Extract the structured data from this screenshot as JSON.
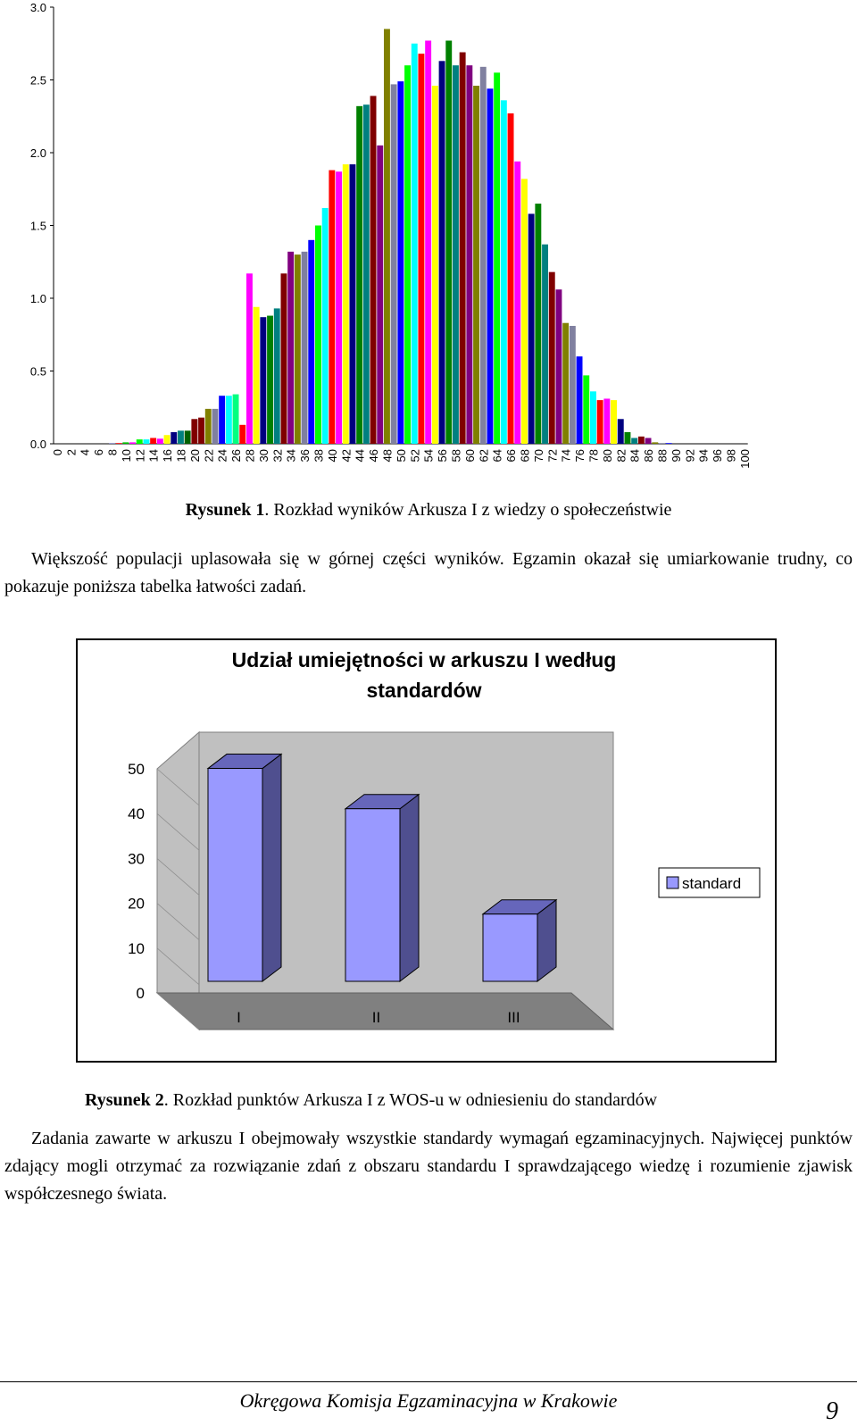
{
  "chart1": {
    "chart_data": {
      "type": "bar",
      "categories": [
        "0",
        "1",
        "2",
        "3",
        "4",
        "5",
        "6",
        "7",
        "8",
        "9",
        "10",
        "11",
        "12",
        "13",
        "14",
        "15",
        "16",
        "17",
        "18",
        "19",
        "20",
        "21",
        "22",
        "23",
        "24",
        "25",
        "26",
        "27",
        "28",
        "29",
        "30",
        "31",
        "32",
        "33",
        "34",
        "35",
        "36",
        "37",
        "38",
        "39",
        "40",
        "41",
        "42",
        "43",
        "44",
        "45",
        "46",
        "47",
        "48",
        "49",
        "50",
        "51",
        "52",
        "53",
        "54",
        "55",
        "56",
        "57",
        "58",
        "59",
        "60",
        "61",
        "62",
        "63",
        "64",
        "65",
        "66",
        "67",
        "68",
        "69",
        "70",
        "71",
        "72",
        "73",
        "74",
        "75",
        "76",
        "77",
        "78",
        "79",
        "80",
        "81",
        "82",
        "83",
        "84",
        "85",
        "86",
        "87",
        "88",
        "89",
        "90",
        "91",
        "92",
        "93",
        "94",
        "95",
        "96",
        "97",
        "98",
        "99",
        "100"
      ],
      "tick_labels": [
        "0",
        "2",
        "4",
        "6",
        "8",
        "10",
        "12",
        "14",
        "16",
        "18",
        "20",
        "22",
        "24",
        "26",
        "28",
        "30",
        "32",
        "34",
        "36",
        "38",
        "40",
        "42",
        "44",
        "46",
        "48",
        "50",
        "52",
        "54",
        "56",
        "58",
        "60",
        "62",
        "64",
        "66",
        "68",
        "70",
        "72",
        "74",
        "76",
        "78",
        "80",
        "82",
        "84",
        "86",
        "88",
        "90",
        "92",
        "94",
        "96",
        "98",
        "100"
      ],
      "values": [
        0,
        0,
        0,
        0,
        0,
        0,
        0,
        0,
        0.005,
        0.005,
        0.01,
        0.01,
        0.03,
        0.03,
        0.04,
        0.035,
        0.06,
        0.08,
        0.09,
        0.09,
        0.17,
        0.18,
        0.24,
        0.24,
        0.33,
        0.33,
        0.34,
        0.13,
        1.17,
        0.94,
        0.87,
        0.88,
        0.93,
        1.17,
        1.32,
        1.3,
        1.32,
        1.4,
        1.5,
        1.62,
        1.88,
        1.87,
        1.92,
        1.92,
        2.32,
        2.33,
        2.39,
        2.05,
        2.85,
        2.47,
        2.49,
        2.6,
        2.75,
        2.68,
        2.77,
        2.46,
        2.63,
        2.77,
        2.6,
        2.69,
        2.6,
        2.46,
        2.59,
        2.44,
        2.55,
        2.36,
        2.27,
        1.94,
        1.82,
        1.58,
        1.65,
        1.37,
        1.18,
        1.06,
        0.83,
        0.81,
        0.6,
        0.47,
        0.36,
        0.3,
        0.31,
        0.3,
        0.17,
        0.08,
        0.04,
        0.05,
        0.04,
        0.01,
        0.005,
        0.005,
        0,
        0,
        0,
        0,
        0,
        0,
        0,
        0,
        0,
        0,
        0
      ],
      "colors": [
        "#000080",
        "#FF00FF",
        "#FFFF00",
        "#00FFFF",
        "#800080",
        "#800000",
        "#008080",
        "#0000FF",
        "#8080C0",
        "#FF0000",
        "#00C000",
        "#FF00FF",
        "#00FF00",
        "#00FFFF",
        "#FF0000",
        "#FF00FF",
        "#FFFF00",
        "#000080",
        "#008080",
        "#006000",
        "#800000",
        "#800000",
        "#808000",
        "#8080A0",
        "#0000FF",
        "#00FFFF",
        "#00FF80",
        "#FF0000",
        "#FF00FF",
        "#FFFF00",
        "#000080",
        "#008000",
        "#008080",
        "#800000",
        "#800080",
        "#808000",
        "#8080A0",
        "#0000FF",
        "#00FF00",
        "#00FFFF",
        "#FF0000",
        "#FF00FF",
        "#FFFF00",
        "#000080",
        "#008000",
        "#008080",
        "#800000",
        "#800080",
        "#808000",
        "#8080A0",
        "#0000FF",
        "#00FF00",
        "#00FFFF",
        "#FF0000",
        "#FF00FF",
        "#FFFF00",
        "#000080",
        "#008000",
        "#008080",
        "#800000",
        "#800080",
        "#808000",
        "#8080A0",
        "#0000FF",
        "#00FF00",
        "#00FFFF",
        "#FF0000",
        "#FF00FF",
        "#FFFF00",
        "#000080",
        "#008000",
        "#008080",
        "#800000",
        "#800080",
        "#808000",
        "#8080A0",
        "#0000FF",
        "#00FF00",
        "#00FFFF",
        "#FF0000",
        "#FF00FF",
        "#FFFF00",
        "#000080",
        "#008000",
        "#008080",
        "#800000",
        "#800080",
        "#808000",
        "#8080A0",
        "#0000FF",
        "#00FF00",
        "#00FFFF",
        "#FF0000",
        "#FF00FF",
        "#FFFF00",
        "#000080",
        "#008000",
        "#008080",
        "#800000",
        "#800080",
        "#808000"
      ],
      "ylim": [
        0,
        3.0
      ],
      "yticks": [
        "0.0",
        "0.5",
        "1.0",
        "1.5",
        "2.0",
        "2.5",
        "3.0"
      ],
      "grid": false
    }
  },
  "caption1": {
    "label": "Rysunek 1",
    "text": ". Rozkład wyników Arkusza I z wiedzy o społeczeństwie"
  },
  "para1": "Większość populacji uplasowała się w górnej części wyników. Egzamin okazał się umiarkowanie trudny, co pokazuje poniższa tabelka łatwości zadań.",
  "chart2": {
    "title_line1": "Udział umiejętności w arkuszu I według",
    "title_line2": "standardów",
    "chart_data": {
      "type": "bar",
      "categories": [
        "I",
        "II",
        "III"
      ],
      "series": [
        {
          "name": "standard",
          "values": [
            47.5,
            38.5,
            15
          ]
        }
      ],
      "ylim": [
        0,
        50
      ],
      "yticks": [
        "0",
        "10",
        "20",
        "30",
        "40",
        "50"
      ],
      "legend": "right",
      "three_d": true,
      "bar_color": "#9999FF",
      "wall_color": "#C0C0C0",
      "floor_color": "#808080"
    }
  },
  "caption2": {
    "label": "Rysunek 2",
    "text": ". Rozkład punktów Arkusza I z WOS-u w odniesieniu do standardów"
  },
  "para2": "Zadania zawarte w arkuszu I obejmowały wszystkie standardy wymagań egzaminacyjnych. Najwięcej punktów zdający mogli otrzymać za rozwiązanie zdań z obszaru standardu I sprawdzającego wiedzę i rozumienie zjawisk współczesnego świata.",
  "footer": {
    "text": "Okręgowa Komisja Egzaminacyjna w Krakowie",
    "page": "9"
  }
}
